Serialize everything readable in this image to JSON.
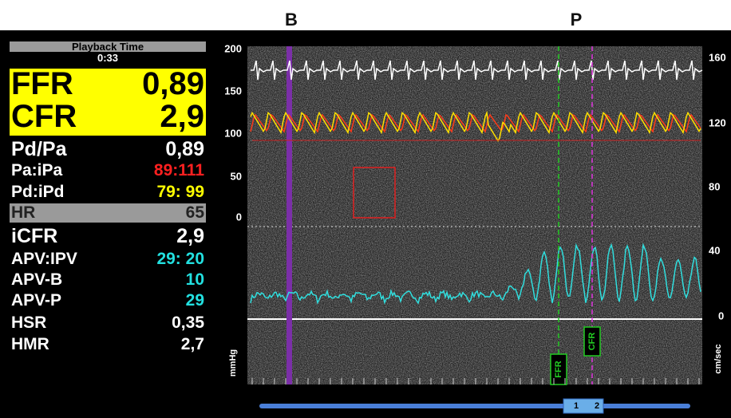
{
  "header": {
    "markers": [
      "B",
      "P"
    ]
  },
  "panel": {
    "playback_label": "Playback Time",
    "playback_time": "0:33",
    "highlight": [
      {
        "label": "FFR",
        "value": "0,89"
      },
      {
        "label": "CFR",
        "value": "2,9"
      }
    ],
    "rows": [
      {
        "label": "Pd/Pa",
        "value": "0,89"
      },
      {
        "label": "Pa:iPa",
        "value": "89:111"
      },
      {
        "label": "Pd:iPd",
        "value": "79: 99"
      },
      {
        "label": "HR",
        "value": "65"
      },
      {
        "label": "iCFR",
        "value": "2,9"
      },
      {
        "label": "APV:IPV",
        "value": "29: 20"
      },
      {
        "label": "APV-B",
        "value": "10"
      },
      {
        "label": "APV-P",
        "value": "29"
      },
      {
        "label": "HSR",
        "value": "0,35"
      },
      {
        "label": "HMR",
        "value": "2,7"
      }
    ]
  },
  "plot": {
    "left_axis": {
      "ticks": [
        "200",
        "150",
        "100",
        "50",
        "0"
      ],
      "unit": "mmHg"
    },
    "right_axis": {
      "ticks": [
        "160",
        "120",
        "80",
        "40",
        "0"
      ],
      "unit": "cm/sec"
    },
    "markers": [
      "FFR",
      "CFR"
    ],
    "timeline": [
      "1",
      "2"
    ]
  }
}
